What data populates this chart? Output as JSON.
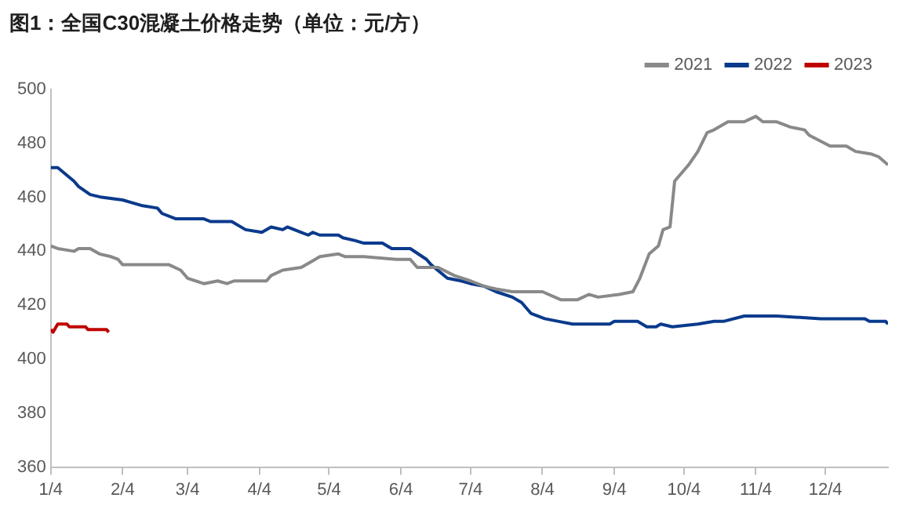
{
  "chart_data": {
    "type": "line",
    "title": "图1：全国C30混凝土价格走势（单位：元/方）",
    "xlim": [
      "--01-04",
      "--12-31"
    ],
    "xticks": [
      {
        "value": "--01-04",
        "label": "1/4"
      },
      {
        "value": "--02-04",
        "label": "2/4"
      },
      {
        "value": "--03-04",
        "label": "3/4"
      },
      {
        "value": "--04-04",
        "label": "4/4"
      },
      {
        "value": "--05-04",
        "label": "5/4"
      },
      {
        "value": "--06-04",
        "label": "6/4"
      },
      {
        "value": "--07-04",
        "label": "7/4"
      },
      {
        "value": "--08-04",
        "label": "8/4"
      },
      {
        "value": "--09-04",
        "label": "9/4"
      },
      {
        "value": "--10-04",
        "label": "10/4"
      },
      {
        "value": "--11-04",
        "label": "11/4"
      },
      {
        "value": "--12-04",
        "label": "12/4"
      }
    ],
    "ylim": [
      360,
      500
    ],
    "yticks": [
      360,
      380,
      400,
      420,
      440,
      460,
      480,
      500
    ],
    "grid": false,
    "legend": "top right",
    "series": [
      {
        "name": "2021",
        "color": "#898989",
        "x": [
          "--01-04",
          "--01-07",
          "--01-14",
          "--01-16",
          "--01-21",
          "--01-25",
          "--01-30",
          "--02-02",
          "--02-04",
          "--02-17",
          "--02-24",
          "--03-01",
          "--03-04",
          "--03-11",
          "--03-17",
          "--03-21",
          "--03-24",
          "--04-07",
          "--04-09",
          "--04-14",
          "--04-22",
          "--04-26",
          "--04-30",
          "--05-08",
          "--05-11",
          "--05-19",
          "--06-02",
          "--06-08",
          "--06-11",
          "--06-20",
          "--06-27",
          "--07-04",
          "--07-10",
          "--07-15",
          "--07-22",
          "--08-04",
          "--08-12",
          "--08-19",
          "--08-24",
          "--08-28",
          "--09-06",
          "--09-12",
          "--09-15",
          "--09-19",
          "--09-23",
          "--09-25",
          "--09-28",
          "--09-30",
          "--10-06",
          "--10-10",
          "--10-14",
          "--10-17",
          "--10-23",
          "--10-30",
          "--11-04",
          "--11-07",
          "--11-13",
          "--11-19",
          "--11-25",
          "--11-27",
          "--12-06",
          "--12-13",
          "--12-17",
          "--12-24",
          "--12-27",
          "--12-31"
        ],
        "values": [
          442,
          441,
          440,
          441,
          441,
          439,
          438,
          437,
          435,
          435,
          435,
          433,
          430,
          428,
          429,
          428,
          429,
          429,
          431,
          433,
          434,
          436,
          438,
          439,
          438,
          438,
          437,
          437,
          434,
          434,
          431,
          429,
          427,
          426,
          425,
          425,
          422,
          422,
          424,
          423,
          424,
          425,
          430,
          439,
          442,
          448,
          449,
          466,
          472,
          477,
          484,
          485,
          488,
          488,
          490,
          488,
          488,
          486,
          485,
          483,
          479,
          479,
          477,
          476,
          475,
          472
        ]
      },
      {
        "name": "2022",
        "color": "#0a3a8c",
        "x": [
          "--01-04",
          "--01-07",
          "--01-14",
          "--01-16",
          "--01-21",
          "--01-26",
          "--02-04",
          "--02-12",
          "--02-19",
          "--02-21",
          "--02-27",
          "--03-04",
          "--03-11",
          "--03-14",
          "--03-23",
          "--03-29",
          "--04-05",
          "--04-09",
          "--04-14",
          "--04-16",
          "--04-22",
          "--04-25",
          "--04-27",
          "--04-30",
          "--05-08",
          "--05-10",
          "--05-15",
          "--05-19",
          "--05-27",
          "--05-31",
          "--06-08",
          "--06-15",
          "--06-17",
          "--06-24",
          "--06-30",
          "--07-04",
          "--07-10",
          "--07-15",
          "--07-22",
          "--07-26",
          "--07-30",
          "--08-05",
          "--08-11",
          "--08-17",
          "--09-02",
          "--09-04",
          "--09-14",
          "--09-18",
          "--09-22",
          "--09-24",
          "--09-29",
          "--10-10",
          "--10-17",
          "--10-21",
          "--10-30",
          "--11-13",
          "--12-02",
          "--12-21",
          "--12-23",
          "--12-30",
          "--12-31"
        ],
        "values": [
          471,
          471,
          466,
          464,
          461,
          460,
          459,
          457,
          456,
          454,
          452,
          452,
          452,
          451,
          451,
          448,
          447,
          449,
          448,
          449,
          447,
          446,
          447,
          446,
          446,
          445,
          444,
          443,
          443,
          441,
          441,
          437,
          435,
          430,
          429,
          428,
          427,
          425,
          423,
          421,
          417,
          415,
          414,
          413,
          413,
          414,
          414,
          412,
          412,
          413,
          412,
          413,
          414,
          414,
          416,
          416,
          415,
          415,
          414,
          414,
          413
        ]
      },
      {
        "name": "2023",
        "color": "#c00000",
        "x": [
          "--01-04",
          "--01-05",
          "--01-07",
          "--01-11",
          "--01-12",
          "--01-19",
          "--01-20",
          "--01-28",
          "--01-29"
        ],
        "values": [
          411,
          410,
          413,
          413,
          412,
          412,
          411,
          411,
          410
        ]
      }
    ]
  }
}
